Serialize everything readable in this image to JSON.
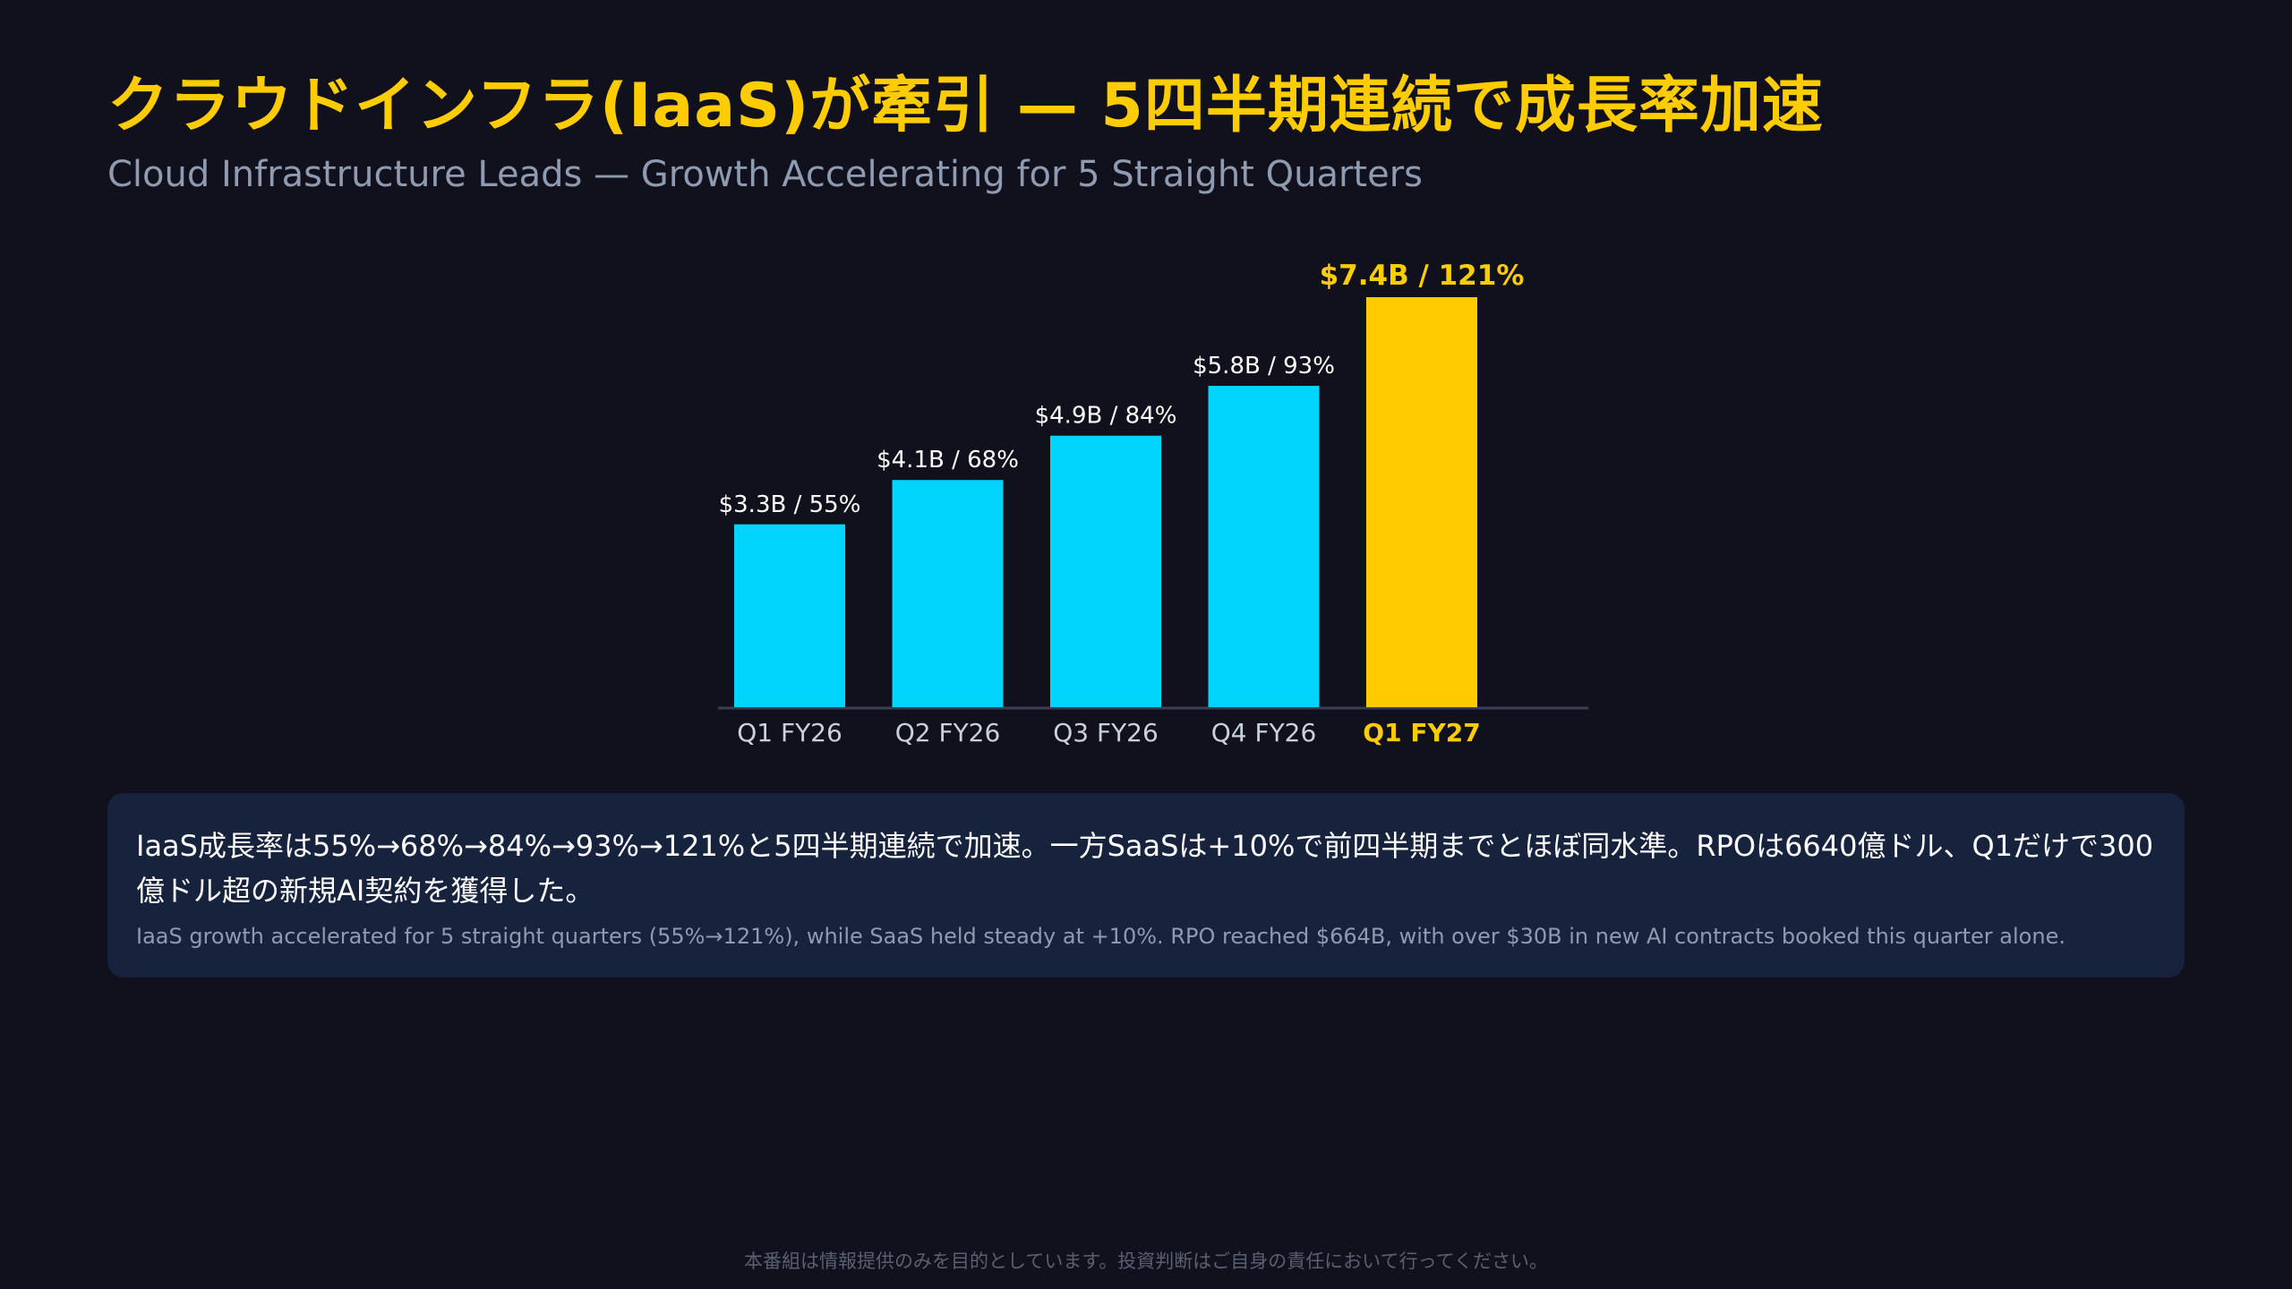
{
  "title": "クラウドインフラ(IaaS)が牽引 — 5四半期連続で成長率加速",
  "subtitle": "Cloud Infrastructure Leads — Growth Accelerating for 5 Straight Quarters",
  "colors": {
    "background": "#10111d",
    "bar": "#00d4ff",
    "highlight": "#ffcc00",
    "panel": "#17223d",
    "axis": "#3a3f55",
    "tick_text": "#c9d1dc"
  },
  "chart_data": {
    "type": "bar",
    "categories": [
      "Q1 FY26",
      "Q2 FY26",
      "Q3 FY26",
      "Q4 FY26",
      "Q1 FY27"
    ],
    "values": [
      3.3,
      4.1,
      4.9,
      5.8,
      7.4
    ],
    "growth_pct": [
      55,
      68,
      84,
      93,
      121
    ],
    "data_labels": [
      "$3.3B / 55%",
      "$4.1B / 68%",
      "$4.9B / 84%",
      "$5.8B / 93%",
      "$7.4B / 121%"
    ],
    "highlight_index": 4,
    "ylim": [
      0,
      7.4
    ],
    "grid": false,
    "legend": "none"
  },
  "summary": {
    "jp": "IaaS成長率は55%→68%→84%→93%→121%と5四半期連続で加速。一方SaaSは+10%で前四半期までとほぼ同水準。RPOは6640億ドル、Q1だけで300億ドル超の新規AI契約を獲得した。",
    "en": "IaaS growth accelerated for 5 straight quarters (55%→121%), while SaaS held steady at +10%. RPO reached $664B, with over $30B in new AI contracts booked this quarter alone."
  },
  "disclaimer": "本番組は情報提供のみを目的としています。投資判断はご自身の責任において行ってください。"
}
